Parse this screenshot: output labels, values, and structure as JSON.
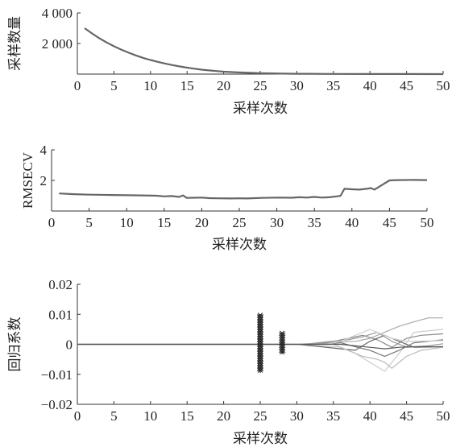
{
  "chart_data": [
    {
      "type": "line",
      "xlabel": "采样次数",
      "ylabel": "采样数量",
      "xlim": [
        0,
        50
      ],
      "ylim": [
        0,
        4000
      ],
      "xticks": [
        0,
        5,
        10,
        15,
        20,
        25,
        30,
        35,
        40,
        45,
        50
      ],
      "yticks": [
        2000,
        4000
      ],
      "ytick_labels": [
        "2 000",
        "4 000"
      ],
      "grid": false,
      "color": "#666666",
      "series": [
        {
          "x": [
            1,
            2,
            3,
            4,
            5,
            6,
            7,
            8,
            9,
            10,
            11,
            12,
            13,
            14,
            15,
            16,
            17,
            18,
            19,
            20,
            22,
            25,
            28,
            30,
            35,
            40,
            45,
            50
          ],
          "y": [
            3000,
            2660,
            2350,
            2070,
            1820,
            1600,
            1400,
            1220,
            1060,
            920,
            800,
            690,
            590,
            500,
            420,
            350,
            290,
            240,
            200,
            160,
            110,
            60,
            30,
            20,
            10,
            5,
            3,
            2
          ]
        }
      ]
    },
    {
      "type": "line",
      "xlabel": "采样次数",
      "ylabel": "RMSECV",
      "xlim": [
        0,
        50
      ],
      "ylim": [
        0,
        4
      ],
      "xticks": [
        0,
        5,
        10,
        15,
        20,
        25,
        30,
        35,
        40,
        45,
        50
      ],
      "yticks": [
        2,
        4
      ],
      "grid": false,
      "color": "#666666",
      "series": [
        {
          "x": [
            1,
            3,
            5,
            8,
            10,
            12,
            14,
            15,
            16,
            17,
            17.5,
            18,
            19,
            20,
            21,
            22,
            24,
            25,
            26,
            28,
            30,
            32,
            33,
            34,
            35,
            36,
            37,
            38,
            38.5,
            39,
            40,
            41,
            42,
            42.5,
            43,
            44,
            45,
            46,
            48,
            50
          ],
          "y": [
            1.15,
            1.1,
            1.07,
            1.05,
            1.03,
            1.02,
            1.0,
            0.96,
            0.98,
            0.92,
            1.02,
            0.86,
            0.87,
            0.88,
            0.84,
            0.83,
            0.82,
            0.83,
            0.82,
            0.86,
            0.88,
            0.87,
            0.9,
            0.88,
            0.92,
            0.88,
            0.9,
            0.96,
            1.0,
            1.45,
            1.42,
            1.4,
            1.45,
            1.5,
            1.4,
            1.7,
            2.0,
            2.02,
            2.03,
            2.02
          ]
        }
      ]
    },
    {
      "type": "line",
      "xlabel": "采样次数",
      "ylabel": "回归系数",
      "xlim": [
        0,
        50
      ],
      "ylim": [
        -0.02,
        0.02
      ],
      "xticks": [
        0,
        5,
        10,
        15,
        20,
        25,
        30,
        35,
        40,
        45,
        50
      ],
      "yticks": [
        -0.02,
        -0.01,
        0,
        0.01,
        0.02
      ],
      "ytick_labels": [
        "−0.02",
        "−0.01",
        "0",
        "0.01",
        "0.02"
      ],
      "grid": false,
      "vertical_markers": [
        {
          "x": 25,
          "ymin": -0.0095,
          "ymax": 0.0098,
          "marker": "asterisk"
        },
        {
          "x": 28,
          "ymin": -0.0032,
          "ymax": 0.0038,
          "marker": "asterisk"
        }
      ],
      "series": [
        {
          "color": "#aaaaaa",
          "x": [
            0,
            30,
            34,
            38,
            40,
            42,
            44,
            46,
            48,
            50
          ],
          "y": [
            0,
            0,
            0.0005,
            0.001,
            0.002,
            0.004,
            0.006,
            0.0075,
            0.0088,
            0.0088
          ]
        },
        {
          "color": "#cccccc",
          "x": [
            0,
            30,
            33,
            36,
            38,
            40,
            42,
            44,
            46,
            50
          ],
          "y": [
            0,
            0,
            -0.0005,
            -0.001,
            -0.003,
            -0.006,
            -0.009,
            -0.003,
            0.004,
            0.005
          ]
        },
        {
          "color": "#888888",
          "x": [
            0,
            32,
            35,
            37,
            39,
            41,
            43,
            45,
            47,
            50
          ],
          "y": [
            0,
            0,
            0.001,
            0.002,
            0.003,
            0.0015,
            -0.001,
            0.002,
            0.003,
            0.0035
          ]
        },
        {
          "color": "#666666",
          "x": [
            0,
            30,
            34,
            36,
            38,
            40,
            42,
            44,
            46,
            50
          ],
          "y": [
            0,
            0,
            -0.001,
            -0.0015,
            -0.002,
            0.001,
            0.003,
            0.001,
            -0.001,
            -0.0008
          ]
        },
        {
          "color": "#bbbbbb",
          "x": [
            0,
            35,
            37,
            39,
            41,
            42,
            43,
            45,
            47,
            50
          ],
          "y": [
            0,
            0,
            -0.002,
            -0.004,
            -0.005,
            -0.006,
            -0.008,
            -0.004,
            -0.002,
            -0.001
          ]
        },
        {
          "color": "#999999",
          "x": [
            0,
            31,
            34,
            37,
            39,
            41,
            43,
            45,
            48,
            50
          ],
          "y": [
            0,
            0,
            0.0008,
            0.0015,
            0.0025,
            0.004,
            0.001,
            -0.001,
            -0.0005,
            0.0002
          ]
        },
        {
          "color": "#777777",
          "x": [
            0,
            33,
            36,
            38,
            40,
            42,
            44,
            46,
            50
          ],
          "y": [
            0,
            0,
            0.0005,
            -0.0008,
            -0.002,
            -0.004,
            -0.002,
            0.0005,
            0.0015
          ]
        },
        {
          "color": "#d0d0d0",
          "x": [
            0,
            34,
            36,
            38,
            40,
            41,
            43,
            45,
            50
          ],
          "y": [
            0,
            0,
            0.001,
            0.003,
            0.005,
            0.004,
            0.002,
            0.001,
            0.0012
          ]
        },
        {
          "color": "#555555",
          "x": [
            0,
            36,
            38,
            40,
            42,
            44,
            46,
            50
          ],
          "y": [
            0,
            0,
            -0.0005,
            -0.001,
            -0.0015,
            -0.001,
            -0.0008,
            -0.0008
          ]
        }
      ]
    }
  ]
}
